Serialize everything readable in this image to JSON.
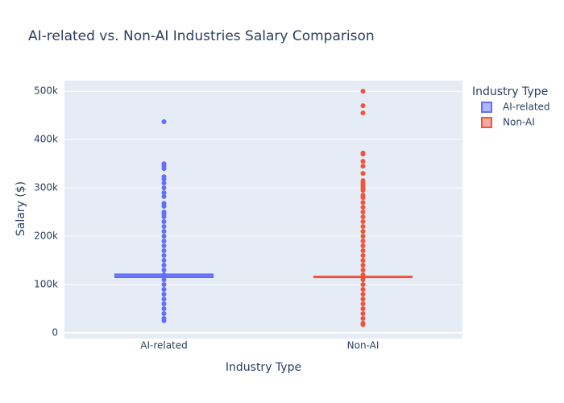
{
  "chart_data": {
    "type": "box",
    "title": "AI-related vs. Non-AI Industries Salary Comparison",
    "x_label": "Industry Type",
    "y_label": "Salary ($)",
    "legend_title": "Industry Type",
    "categories": [
      "AI-related",
      "Non-AI"
    ],
    "ylim": [
      -11800,
      522000
    ],
    "yticks": [
      0,
      {
        "value": 100000,
        "label": "100k"
      },
      {
        "value": 200000,
        "label": "200k"
      },
      {
        "value": 300000,
        "label": "300k"
      },
      {
        "value": 400000,
        "label": "400k"
      },
      {
        "value": 500000,
        "label": "500k"
      }
    ],
    "grid": true,
    "series": [
      {
        "name": "AI-related",
        "color": "#636efa",
        "q1": 115000,
        "median": 117000,
        "q3": 121000,
        "lowerfence": 106000,
        "upperfence": 130000,
        "points": [
          25000,
          30000,
          40000,
          50000,
          60000,
          70000,
          80000,
          90000,
          100000,
          110000,
          120000,
          130000,
          140000,
          150000,
          160000,
          170000,
          180000,
          190000,
          200000,
          210000,
          220000,
          230000,
          240000,
          245000,
          250000,
          262000,
          268000,
          282000,
          290000,
          300000,
          310000,
          318000,
          323000,
          340000,
          345000,
          350000,
          437000
        ]
      },
      {
        "name": "Non-AI",
        "color": "#ef553b",
        "q1": 115500,
        "median": 116000,
        "q3": 116500,
        "lowerfence": 115000,
        "upperfence": 117000,
        "points": [
          17000,
          20000,
          30000,
          40000,
          50000,
          60000,
          70000,
          80000,
          90000,
          100000,
          110000,
          120000,
          130000,
          140000,
          150000,
          160000,
          170000,
          180000,
          190000,
          200000,
          210000,
          220000,
          230000,
          240000,
          250000,
          260000,
          270000,
          280000,
          285000,
          295000,
          300000,
          305000,
          310000,
          315000,
          330000,
          345000,
          355000,
          370000,
          372000,
          455000,
          470000,
          500000
        ]
      }
    ]
  }
}
